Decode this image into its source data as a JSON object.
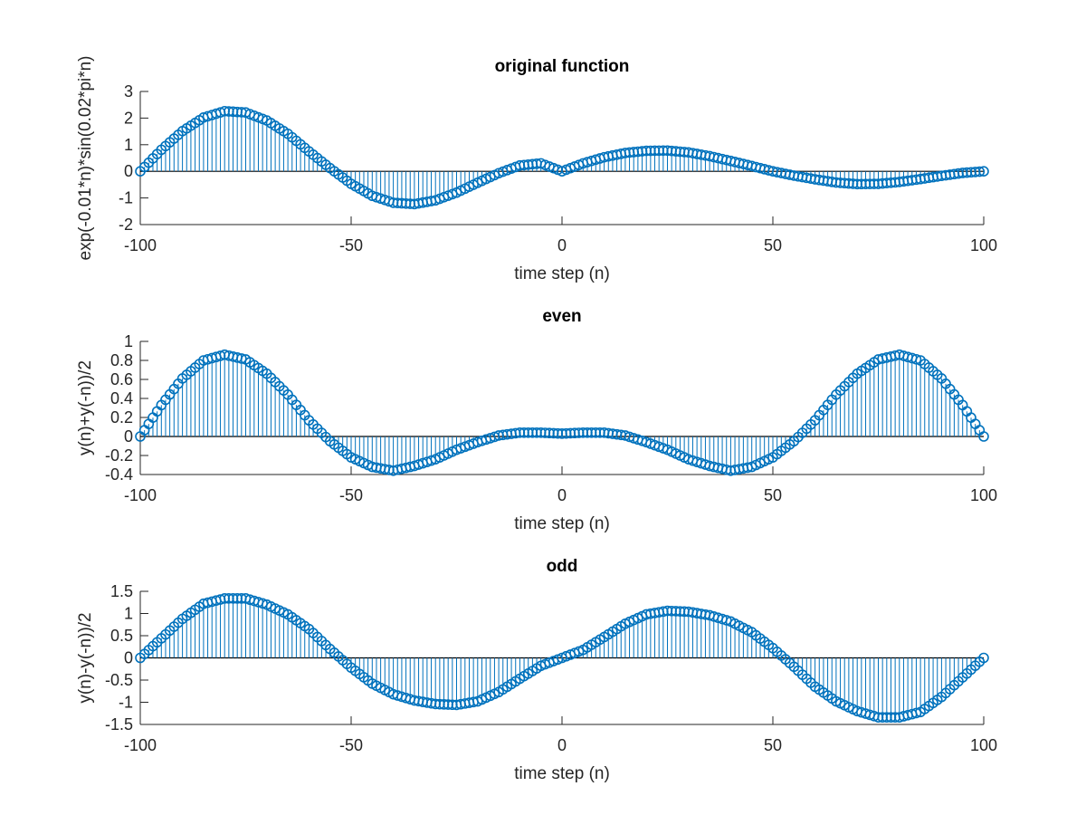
{
  "chart_data": [
    {
      "type": "stem",
      "title": "original function",
      "xlabel": "time step (n)",
      "ylabel": "exp(-0.01*n)*sin(0.02*pi*n)",
      "xlim": [
        -100,
        100
      ],
      "ylim": [
        -2,
        3
      ],
      "xticks": [
        -100,
        -50,
        0,
        50,
        100
      ],
      "yticks": [
        -2,
        -1,
        0,
        1,
        2,
        3
      ],
      "series": [
        {
          "x": [
            -100,
            -95,
            -90,
            -85,
            -80,
            -75,
            -70,
            -65,
            -60,
            -55,
            -50,
            -45,
            -40,
            -35,
            -30,
            -25,
            -20,
            -15,
            -10,
            -5,
            0,
            5,
            10,
            15,
            20,
            25,
            30,
            35,
            40,
            45,
            50,
            55,
            60,
            65,
            70,
            75,
            80,
            85,
            90,
            95,
            100
          ],
          "values": [
            0,
            0.81,
            1.51,
            2.02,
            2.26,
            2.21,
            1.91,
            1.41,
            0.75,
            0.12,
            -0.47,
            -0.92,
            -1.18,
            -1.23,
            -1.09,
            -0.8,
            -0.43,
            -0.07,
            0.22,
            0.3,
            0,
            0.3,
            0.53,
            0.69,
            0.77,
            0.78,
            0.71,
            0.57,
            0.39,
            0.2,
            0,
            -0.16,
            -0.3,
            -0.42,
            -0.48,
            -0.47,
            -0.4,
            -0.29,
            -0.17,
            -0.06,
            0
          ]
        }
      ],
      "color": "#0072BD"
    },
    {
      "type": "stem",
      "title": "even",
      "xlabel": "time step (n)",
      "ylabel": "y(n)+y(-n))/2",
      "xlim": [
        -100,
        100
      ],
      "ylim": [
        -0.4,
        1
      ],
      "xticks": [
        -100,
        -50,
        0,
        50,
        100
      ],
      "yticks": [
        -0.4,
        -0.2,
        0,
        0.2,
        0.4,
        0.6,
        0.8,
        1
      ],
      "series": [
        {
          "x": [
            -100,
            -95,
            -90,
            -85,
            -80,
            -75,
            -70,
            -65,
            -60,
            -55,
            -50,
            -45,
            -40,
            -35,
            -30,
            -25,
            -20,
            -15,
            -10,
            -5,
            0,
            5,
            10,
            15,
            20,
            25,
            30,
            35,
            40,
            45,
            50,
            55,
            60,
            65,
            70,
            75,
            80,
            85,
            90,
            95,
            100
          ],
          "values": [
            0,
            0.33,
            0.61,
            0.8,
            0.86,
            0.81,
            0.66,
            0.44,
            0.17,
            -0.05,
            -0.22,
            -0.32,
            -0.36,
            -0.31,
            -0.24,
            -0.14,
            -0.06,
            0.01,
            0.04,
            0.04,
            0.03,
            0.04,
            0.04,
            0.01,
            -0.06,
            -0.14,
            -0.24,
            -0.31,
            -0.36,
            -0.32,
            -0.22,
            -0.05,
            0.17,
            0.44,
            0.66,
            0.81,
            0.86,
            0.8,
            0.61,
            0.33,
            0
          ]
        }
      ],
      "color": "#0072BD"
    },
    {
      "type": "stem",
      "title": "odd",
      "xlabel": "time step (n)",
      "ylabel": "y(n)-y(-n))/2",
      "xlim": [
        -100,
        100
      ],
      "ylim": [
        -1.5,
        1.5
      ],
      "xticks": [
        -100,
        -50,
        0,
        50,
        100
      ],
      "yticks": [
        -1.5,
        -1,
        -0.5,
        0,
        0.5,
        1,
        1.5
      ],
      "series": [
        {
          "x": [
            -100,
            -95,
            -90,
            -85,
            -80,
            -75,
            -70,
            -65,
            -60,
            -55,
            -50,
            -45,
            -40,
            -35,
            -30,
            -25,
            -20,
            -15,
            -10,
            -5,
            0,
            5,
            10,
            15,
            20,
            25,
            30,
            35,
            40,
            45,
            50,
            55,
            60,
            65,
            70,
            75,
            80,
            85,
            90,
            95,
            100
          ],
          "values": [
            0,
            0.44,
            0.88,
            1.22,
            1.34,
            1.34,
            1.2,
            0.98,
            0.65,
            0.2,
            -0.22,
            -0.58,
            -0.82,
            -0.96,
            -1.04,
            -1.06,
            -0.98,
            -0.77,
            -0.47,
            -0.18,
            0,
            0.18,
            0.47,
            0.77,
            0.98,
            1.06,
            1.04,
            0.96,
            0.82,
            0.58,
            0.22,
            -0.2,
            -0.65,
            -0.98,
            -1.2,
            -1.34,
            -1.34,
            -1.22,
            -0.88,
            -0.44,
            0
          ]
        }
      ],
      "color": "#0072BD"
    }
  ]
}
